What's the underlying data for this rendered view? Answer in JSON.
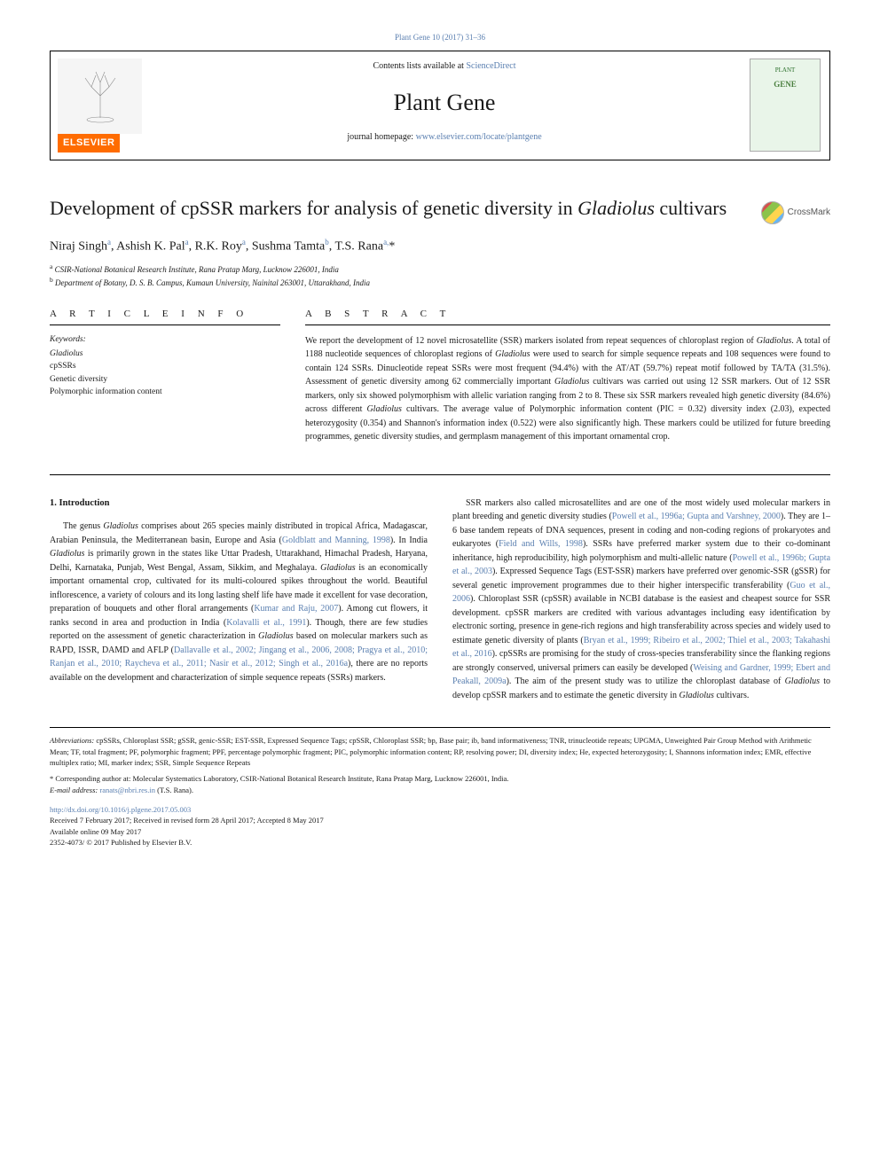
{
  "top_link": "Plant Gene 10 (2017) 31–36",
  "header": {
    "contents_prefix": "Contents lists available at ",
    "contents_link": "ScienceDirect",
    "journal_name": "Plant Gene",
    "homepage_prefix": "journal homepage: ",
    "homepage_url": "www.elsevier.com/locate/plantgene",
    "elsevier_label": "ELSEVIER",
    "cover_top": "PLANT",
    "cover_label": "GENE"
  },
  "title_plain": "Development of cpSSR markers for analysis of genetic diversity in ",
  "title_italic": "Gladiolus",
  "title_tail": " cultivars",
  "crossmark_label": "CrossMark",
  "authors_html": "Niraj Singh<sup>a</sup>, Ashish K. Pal<sup>a</sup>, R.K. Roy<sup>a</sup>, Sushma Tamta<sup>b</sup>, T.S. Rana<sup>a,</sup>*",
  "affiliations": {
    "a": "a CSIR-National Botanical Research Institute, Rana Pratap Marg, Lucknow 226001, India",
    "b": "b Department of Botany, D. S. B. Campus, Kumaun University, Nainital 263001, Uttarakhand, India"
  },
  "info_label": "A R T I C L E  I N F O",
  "abstract_label": "A B S T R A C T",
  "keywords_heading": "Keywords:",
  "keywords": [
    "Gladiolus",
    "cpSSRs",
    "Genetic diversity",
    "Polymorphic information content"
  ],
  "abstract": "We report the development of 12 novel microsatellite (SSR) markers isolated from repeat sequences of chloroplast region of Gladiolus. A total of 1188 nucleotide sequences of chloroplast regions of Gladiolus were used to search for simple sequence repeats and 108 sequences were found to contain 124 SSRs. Dinucleotide repeat SSRs were most frequent (94.4%) with the AT/AT (59.7%) repeat motif followed by TA/TA (31.5%). Assessment of genetic diversity among 62 commercially important Gladiolus cultivars was carried out using 12 SSR markers. Out of 12 SSR markers, only six showed polymorphism with allelic variation ranging from 2 to 8. These six SSR markers revealed high genetic diversity (84.6%) across different Gladiolus cultivars. The average value of Polymorphic information content (PIC = 0.32) diversity index (2.03), expected heterozygosity (0.354) and Shannon's information index (0.522) were also significantly high. These markers could be utilized for future breeding programmes, genetic diversity studies, and germplasm management of this important ornamental crop.",
  "intro_heading": "1. Introduction",
  "intro": {
    "p1a": "The genus ",
    "p1b": "Gladiolus",
    "p1c": " comprises about 265 species mainly distributed in tropical Africa, Madagascar, Arabian Peninsula, the Mediterranean basin, Europe and Asia (",
    "c1": "Goldblatt and Manning, 1998",
    "p1d": "). In India ",
    "p1e": "Gladiolus",
    "p1f": " is primarily grown in the states like Uttar Pradesh, Uttarakhand, Himachal Pradesh, Haryana, Delhi, Karnataka, Punjab, West Bengal, Assam, Sikkim, and Meghalaya. ",
    "p1g": "Gladiolus",
    "p1h": " is an economically important ornamental crop, cultivated for its multi-coloured spikes throughout the world. Beautiful inflorescence, a variety of colours and its long lasting shelf life have made it excellent for vase decoration, preparation of bouquets and other floral arrangements (",
    "c2": "Kumar and Raju, 2007",
    "p1i": "). Among cut flowers, it ranks second in area and production in India (",
    "c3": "Kolavalli et al., 1991",
    "p1j": "). Though, there are few studies reported on the assessment of genetic characterization in ",
    "p1k": "Gladiolus",
    "p1l": " based on molecular markers such as RAPD, ISSR, DAMD and AFLP (",
    "c4": "Dallavalle et al., 2002; Jingang et al., 2006, 2008; Pragya et al., 2010; Ranjan et al., 2010; Raycheva et al., 2011; Nasir et al., 2012; Singh et al., 2016a",
    "p1m": "), there are no reports available on the development and characterization of simple sequence repeats (SSRs) markers.",
    "p2a": "SSR markers also called microsatellites and are one of the most widely used molecular markers in plant breeding and genetic diversity studies (",
    "c5": "Powell et al., 1996a; Gupta and Varshney, 2000",
    "p2b": "). They are 1–6 base tandem repeats of DNA sequences, present in coding and non-coding regions of prokaryotes and eukaryotes (",
    "c6": "Field and Wills, 1998",
    "p2c": "). SSRs have preferred marker system due to their co-dominant inheritance, high reproducibility, high polymorphism and multi-allelic nature (",
    "c7": "Powell et al., 1996b; Gupta et al., 2003",
    "p2d": "). Expressed Sequence Tags (EST-SSR) markers have preferred over genomic-SSR (gSSR) for several genetic improvement programmes due to their higher interspecific transferability (",
    "c8": "Guo et al., 2006",
    "p2e": "). Chloroplast SSR (cpSSR) available in NCBI database is the easiest and cheapest source for SSR development. cpSSR markers are credited with various advantages including easy identification by electronic sorting, presence in gene-rich regions and high transferability across species and widely used to estimate genetic diversity of plants (",
    "c9": "Bryan et al., 1999; Ribeiro et al., 2002; Thiel et al., 2003; Takahashi et al., 2016",
    "p2f": "). cpSSRs are promising for the study of cross-species transferability since the flanking regions are strongly conserved, universal primers can easily be developed (",
    "c10": "Weising and Gardner, 1999; Ebert and Peakall, 2009a",
    "p2g": "). The aim of the present study was to utilize the chloroplast database of ",
    "p2h": "Gladiolus",
    "p2i": " to develop cpSSR markers and to estimate the genetic diversity in ",
    "p2j": "Gladiolus",
    "p2k": " cultivars."
  },
  "footer": {
    "abbrev_label": "Abbreviations:",
    "abbrev_text": " cpSSRs, Chloroplast SSR; gSSR, genic-SSR; EST-SSR, Expressed Sequence Tags; cpSSR, Chloroplast SSR; bp, Base pair; ib, band informativeness; TNR, trinucleotide repeats; UPGMA, Unweighted Pair Group Method with Arithmetic Mean; TF, total fragment; PF, polymorphic fragment; PPF, percentage polymorphic fragment; PIC, polymorphic information content; RP, resolving power; DI, diversity index; He, expected heterozygosity; I, Shannons information index; EMR, effective multiplex ratio; MI, marker index; SSR, Simple Sequence Repeats",
    "corr": "* Corresponding author at: Molecular Systematics Laboratory, CSIR-National Botanical Research Institute, Rana Pratap Marg, Lucknow 226001, India.",
    "email_label": "E-mail address: ",
    "email_addr": "ranats@nbri.res.in",
    "email_tail": " (T.S. Rana).",
    "doi": "http://dx.doi.org/10.1016/j.plgene.2017.05.003",
    "received": "Received 7 February 2017; Received in revised form 28 April 2017; Accepted 8 May 2017",
    "online": "Available online 09 May 2017",
    "issn": "2352-4073/ © 2017 Published by Elsevier B.V."
  },
  "colors": {
    "link": "#5a7fb0",
    "elsevier": "#ff6c00",
    "text": "#1a1a1a"
  }
}
